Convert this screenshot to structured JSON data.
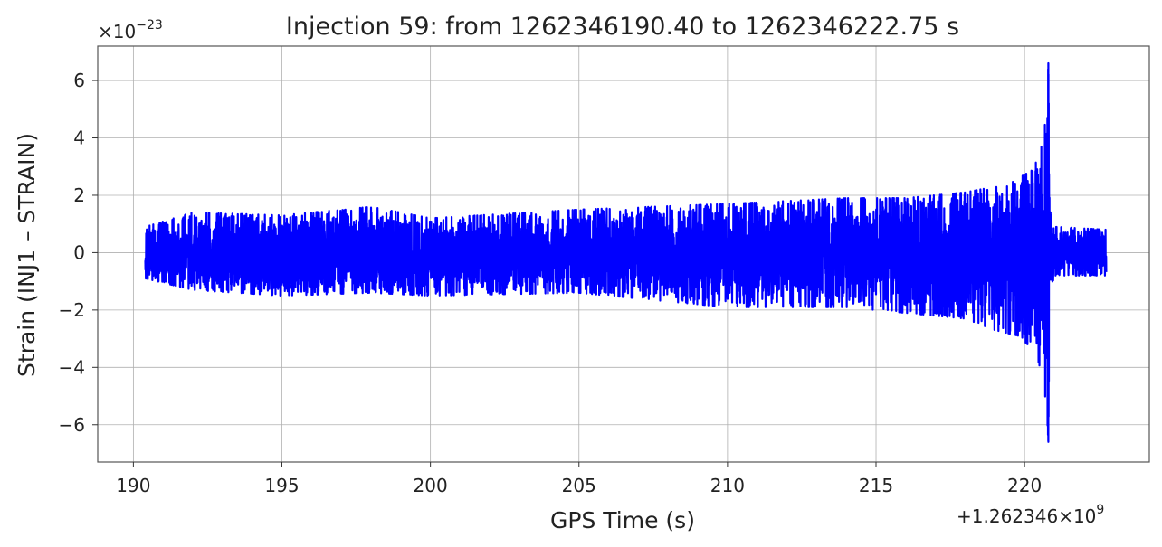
{
  "chart_data": {
    "type": "line",
    "title": "Injection 59: from 1262346190.40 to 1262346222.75 s",
    "xlabel": "GPS Time (s)",
    "ylabel": "Strain (INJ1 – STRAIN)",
    "x_offset_label": "+1.262346×10",
    "x_offset_exp": "9",
    "y_scale_label": "×10",
    "y_scale_exp": "−23",
    "xlim": [
      188.8,
      224.2
    ],
    "ylim": [
      -7.3,
      7.2
    ],
    "x_ticks": [
      {
        "value": 190,
        "label": "190"
      },
      {
        "value": 195,
        "label": "195"
      },
      {
        "value": 200,
        "label": "200"
      },
      {
        "value": 205,
        "label": "205"
      },
      {
        "value": 210,
        "label": "210"
      },
      {
        "value": 215,
        "label": "215"
      },
      {
        "value": 220,
        "label": "220"
      }
    ],
    "y_ticks": [
      {
        "value": 6,
        "label": "6"
      },
      {
        "value": 4,
        "label": "4"
      },
      {
        "value": 2,
        "label": "2"
      },
      {
        "value": 0,
        "label": "0"
      },
      {
        "value": -2,
        "label": "−2"
      },
      {
        "value": -4,
        "label": "−4"
      },
      {
        "value": -6,
        "label": "−6"
      }
    ],
    "grid": true,
    "series": [
      {
        "color": "#0000ff",
        "x_start": 190.4,
        "x_end": 222.75,
        "merger_time": 220.8,
        "peak_strain": 6.6,
        "envelope": {
          "x": [
            190.4,
            192,
            195,
            198,
            200,
            205,
            210,
            214,
            216,
            218,
            219,
            219.8,
            220.3,
            220.6,
            220.75,
            220.8,
            220.85,
            221.0,
            222.75
          ],
          "max": [
            0.9,
            1.4,
            1.3,
            1.6,
            1.2,
            1.5,
            1.7,
            1.9,
            1.9,
            2.1,
            2.3,
            2.6,
            2.9,
            3.8,
            5.0,
            6.6,
            1.5,
            0.9,
            0.8
          ],
          "min": [
            -0.9,
            -1.3,
            -1.5,
            -1.4,
            -1.5,
            -1.4,
            -1.9,
            -1.9,
            -2.1,
            -2.3,
            -2.7,
            -2.9,
            -3.4,
            -4.2,
            -5.5,
            -6.6,
            -1.5,
            -0.8,
            -0.8
          ]
        }
      }
    ]
  }
}
